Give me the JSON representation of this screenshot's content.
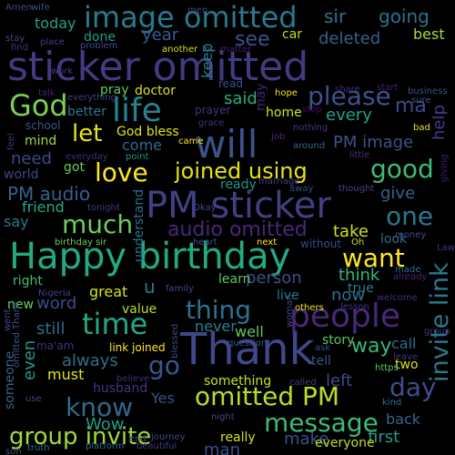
{
  "words": [
    {
      "text": "sticker omitted",
      "color": "#433a83"
    },
    {
      "text": "Happy birthday",
      "color": "#24aa83"
    },
    {
      "text": "Thank",
      "color": "#3f4889"
    },
    {
      "text": "PM sticker",
      "color": "#423f85"
    },
    {
      "text": "image omitted",
      "color": "#29798e"
    },
    {
      "text": "will",
      "color": "#3b528b"
    },
    {
      "text": "people",
      "color": "#482878"
    },
    {
      "text": "life",
      "color": "#26828e"
    },
    {
      "text": "invite link",
      "color": "#2a788e"
    },
    {
      "text": "joined using",
      "color": "#e5e419"
    },
    {
      "text": "group invite",
      "color": "#a0da39"
    },
    {
      "text": "omitted PM",
      "color": "#b5de2b"
    },
    {
      "text": "time",
      "color": "#22a884"
    },
    {
      "text": "message",
      "color": "#3bbb75"
    },
    {
      "text": "thing",
      "color": "#2c728e"
    },
    {
      "text": "please",
      "color": "#3b528b"
    },
    {
      "text": "God",
      "color": "#7ad151"
    },
    {
      "text": "love",
      "color": "#fde725"
    },
    {
      "text": "good",
      "color": "#3dbc74"
    },
    {
      "text": "one",
      "color": "#2a788e"
    },
    {
      "text": "know",
      "color": "#31688e"
    },
    {
      "text": "much",
      "color": "#6ccd5a"
    },
    {
      "text": "day",
      "color": "#3d4e8a"
    },
    {
      "text": "want",
      "color": "#fde725"
    },
    {
      "text": "PM audio",
      "color": "#33638d"
    },
    {
      "text": "audio omitted",
      "color": "#482878"
    },
    {
      "text": "go",
      "color": "#38598c"
    },
    {
      "text": "let",
      "color": "#e7e419"
    },
    {
      "text": "way",
      "color": "#35b779"
    },
    {
      "text": "see",
      "color": "#3b528b"
    },
    {
      "text": "keep",
      "color": "#26828e"
    },
    {
      "text": "going",
      "color": "#2c728e"
    },
    {
      "text": "sir",
      "color": "#2a788e"
    },
    {
      "text": "today",
      "color": "#20a386"
    },
    {
      "text": "year",
      "color": "#355f8d"
    },
    {
      "text": "deleted",
      "color": "#34618d"
    },
    {
      "text": "best",
      "color": "#a5db36"
    },
    {
      "text": "car",
      "color": "#bddf26"
    },
    {
      "text": "done",
      "color": "#1f9e89"
    },
    {
      "text": "said",
      "color": "#29af7f"
    },
    {
      "text": "every",
      "color": "#20a386"
    },
    {
      "text": "PM image",
      "color": "#3b528b"
    },
    {
      "text": "ma",
      "color": "#3e4989"
    },
    {
      "text": "help",
      "color": "#433e85"
    },
    {
      "text": "home",
      "color": "#d2e21b"
    },
    {
      "text": "doctor",
      "color": "#d8e219"
    },
    {
      "text": "pray",
      "color": "#5ec962"
    },
    {
      "text": "better",
      "color": "#2a788e"
    },
    {
      "text": "God bless",
      "color": "#e3e418"
    },
    {
      "text": "come",
      "color": "#306a8e"
    },
    {
      "text": "need",
      "color": "#3f4788"
    },
    {
      "text": "mind",
      "color": "#a2da37"
    },
    {
      "text": "got",
      "color": "#67cc5c"
    },
    {
      "text": "world",
      "color": "#3f4788"
    },
    {
      "text": "friend",
      "color": "#22a884"
    },
    {
      "text": "say",
      "color": "#29798e"
    },
    {
      "text": "right",
      "color": "#44bf70"
    },
    {
      "text": "ready",
      "color": "#1f958b"
    },
    {
      "text": "give",
      "color": "#33638d"
    },
    {
      "text": "take",
      "color": "#d0e11c"
    },
    {
      "text": "look",
      "color": "#2d708e"
    },
    {
      "text": "think",
      "color": "#35b779"
    },
    {
      "text": "person",
      "color": "#3b528b"
    },
    {
      "text": "learn",
      "color": "#5ec962"
    },
    {
      "text": "great",
      "color": "#d2e21b"
    },
    {
      "text": "u",
      "color": "#2a788e"
    },
    {
      "text": "word",
      "color": "#3e4a89"
    },
    {
      "text": "now",
      "color": "#2c728e"
    },
    {
      "text": "true",
      "color": "#26828e"
    },
    {
      "text": "live",
      "color": "#29798e"
    },
    {
      "text": "still",
      "color": "#306a8e"
    },
    {
      "text": "new",
      "color": "#6ccd5a"
    },
    {
      "text": "value",
      "color": "#b8de29"
    },
    {
      "text": "never",
      "color": "#26828e"
    },
    {
      "text": "well",
      "color": "#5ec962"
    },
    {
      "text": "always",
      "color": "#2e6e8e"
    },
    {
      "text": "even",
      "color": "#1f9a8a"
    },
    {
      "text": "must",
      "color": "#e1e418"
    },
    {
      "text": "husband",
      "color": "#453581"
    },
    {
      "text": "Yes",
      "color": "#3b528b"
    },
    {
      "text": "something",
      "color": "#c8e020"
    },
    {
      "text": "left",
      "color": "#3e4a89"
    },
    {
      "text": "call",
      "color": "#2f6b8e"
    },
    {
      "text": "tell",
      "color": "#3b528b"
    },
    {
      "text": "two",
      "color": "#d5e21a"
    },
    {
      "text": "Wow",
      "color": "#1f9e89"
    },
    {
      "text": "man",
      "color": "#3c4f8a"
    },
    {
      "text": "make",
      "color": "#3b528b"
    },
    {
      "text": "back",
      "color": "#31688e"
    },
    {
      "text": "first",
      "color": "#1f9e89"
    },
    {
      "text": "really",
      "color": "#d0e11c"
    },
    {
      "text": "everyone",
      "color": "#bddf26"
    },
    {
      "text": "someone",
      "color": "#33638d"
    },
    {
      "text": "story",
      "color": "#5ec962"
    },
    {
      "text": "link joined",
      "color": "#fde725"
    },
    {
      "text": "ma'am",
      "color": "#472d7b"
    },
    {
      "text": "understand",
      "color": "#2d708e"
    },
    {
      "text": "school",
      "color": "#3b528b"
    },
    {
      "text": "prayer",
      "color": "#46327e"
    },
    {
      "text": "wife",
      "color": "#3b528b"
    },
    {
      "text": "Amen",
      "color": "#3e4989"
    },
    {
      "text": "stay",
      "color": "#3e4989"
    },
    {
      "text": "place",
      "color": "#424086"
    },
    {
      "text": "find",
      "color": "#46307e"
    },
    {
      "text": "problem",
      "color": "#3e4a89"
    },
    {
      "text": "men",
      "color": "#414487"
    },
    {
      "text": "another",
      "color": "#d2e21b"
    },
    {
      "text": "lot",
      "color": "#34618d"
    },
    {
      "text": "matter",
      "color": "#481f70"
    },
    {
      "text": "work",
      "color": "#443983"
    },
    {
      "text": "talk",
      "color": "#482475"
    },
    {
      "text": "everything",
      "color": "#433e85"
    },
    {
      "text": "read",
      "color": "#3b528b"
    },
    {
      "text": "may",
      "color": "#482475"
    },
    {
      "text": "hope",
      "color": "#f1e51d"
    },
    {
      "text": "share",
      "color": "#46307e"
    },
    {
      "text": "start",
      "color": "#482173"
    },
    {
      "text": "business",
      "color": "#3b528b"
    },
    {
      "text": "sure",
      "color": "#3b528b"
    },
    {
      "text": "bad",
      "color": "#e7e419"
    },
    {
      "text": "job",
      "color": "#482878"
    },
    {
      "text": "nothing",
      "color": "#453581"
    },
    {
      "text": "stop",
      "color": "#470e61"
    },
    {
      "text": "grace",
      "color": "#46327e"
    },
    {
      "text": "came",
      "color": "#fde725"
    },
    {
      "text": "around",
      "color": "#31688e"
    },
    {
      "text": "little",
      "color": "#46307e"
    },
    {
      "text": "marriage",
      "color": "#424086"
    },
    {
      "text": "away",
      "color": "#3e4a89"
    },
    {
      "text": "thought",
      "color": "#414487"
    },
    {
      "text": "giving",
      "color": "#481f70"
    },
    {
      "text": "point",
      "color": "#1f958b"
    },
    {
      "text": "everyday",
      "color": "#472c7a"
    },
    {
      "text": "feel",
      "color": "#46307e"
    },
    {
      "text": "Okay",
      "color": "#3f4889"
    },
    {
      "text": "tonight",
      "color": "#453882"
    },
    {
      "text": "birthday sir",
      "color": "#6ccd5a"
    },
    {
      "text": "heart",
      "color": "#3b528b"
    },
    {
      "text": "next",
      "color": "#fde725"
    },
    {
      "text": "without",
      "color": "#3e4989"
    },
    {
      "text": "Oh",
      "color": "#c8e020"
    },
    {
      "text": "money",
      "color": "#3e4a89"
    },
    {
      "text": "Law",
      "color": "#46307e"
    },
    {
      "text": "made",
      "color": "#2c728e"
    },
    {
      "text": "already",
      "color": "#482475"
    },
    {
      "text": "welcome",
      "color": "#472c7a"
    },
    {
      "text": "lesson",
      "color": "#453882"
    },
    {
      "text": "others",
      "color": "#f1e51d"
    },
    {
      "text": "woman",
      "color": "#3e4a89"
    },
    {
      "text": "family",
      "color": "#3e4a89"
    },
    {
      "text": "Nigeria",
      "color": "#423f85"
    },
    {
      "text": "question",
      "color": "#3b528b"
    },
    {
      "text": "went",
      "color": "#3e4a89"
    },
    {
      "text": "omitted Thank",
      "color": "#3b528b"
    },
    {
      "text": "blessed",
      "color": "#3e4a89"
    },
    {
      "text": "believe",
      "color": "#472d7b"
    },
    {
      "text": "use",
      "color": "#3e4a89"
    },
    {
      "text": "ask",
      "color": "#3e4989"
    },
    {
      "text": "leave",
      "color": "#453781"
    },
    {
      "text": "https",
      "color": "#5ec962"
    },
    {
      "text": "called",
      "color": "#453781"
    },
    {
      "text": "night",
      "color": "#3e4a89"
    },
    {
      "text": "kind",
      "color": "#2c728e"
    },
    {
      "text": "group",
      "color": "#453581"
    },
    {
      "text": "end",
      "color": "#3e4989"
    },
    {
      "text": "journey",
      "color": "#3e4989"
    },
    {
      "text": "truth",
      "color": "#2d708e"
    },
    {
      "text": "platform",
      "color": "#2f6b8e"
    },
    {
      "text": "beautiful",
      "color": "#453882"
    },
    {
      "text": "son",
      "color": "#3e4a89"
    }
  ]
}
